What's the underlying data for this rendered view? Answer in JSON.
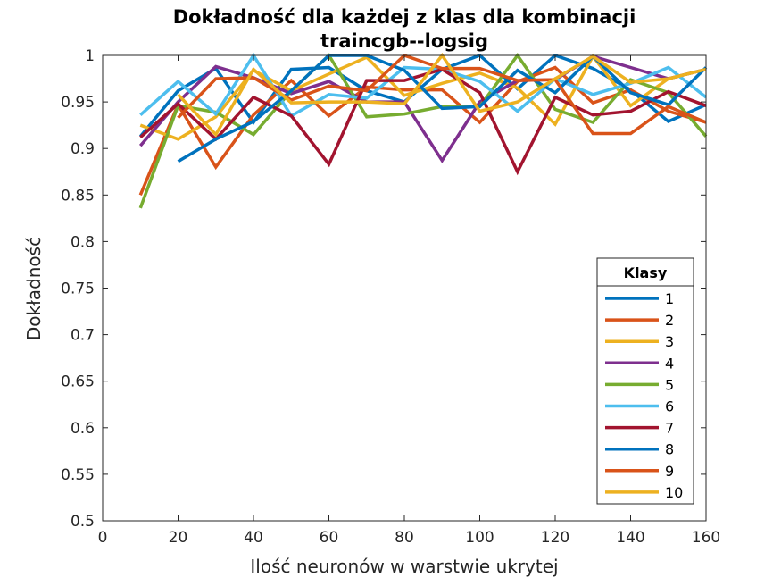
{
  "chart_data": {
    "type": "line",
    "title": [
      "Dokładność dla każdej z klas dla kombinacji",
      "traincgb--logsig"
    ],
    "xlabel": "Ilość neuronów w warstwie ukrytej",
    "ylabel": "Dokładność",
    "xlim": [
      0,
      160
    ],
    "ylim": [
      0.5,
      1
    ],
    "xticks": [
      0,
      20,
      40,
      60,
      80,
      100,
      120,
      140,
      160
    ],
    "yticks": [
      0.5,
      0.55,
      0.6,
      0.65,
      0.7,
      0.75,
      0.8,
      0.85,
      0.9,
      0.95,
      1
    ],
    "xtick_labels": [
      "0",
      "20",
      "40",
      "60",
      "80",
      "100",
      "120",
      "140",
      "160"
    ],
    "ytick_labels": [
      "0.5",
      "0.55",
      "0.6",
      "0.65",
      "0.7",
      "0.75",
      "0.8",
      "0.85",
      "0.9",
      "0.95",
      "1"
    ],
    "grid": false,
    "legend": {
      "title": "Klasy",
      "placement": "bottom-right"
    },
    "x": [
      10,
      20,
      30,
      40,
      50,
      60,
      70,
      80,
      90,
      100,
      110,
      120,
      130,
      140,
      150,
      160
    ],
    "series": [
      {
        "name": "1",
        "color": "#0072BD",
        "values": [
          0.913,
          0.962,
          0.986,
          0.928,
          0.985,
          0.987,
          0.962,
          0.95,
          0.985,
          1.0,
          0.964,
          1.0,
          0.986,
          0.963,
          0.929,
          0.947
        ]
      },
      {
        "name": "2",
        "color": "#D95319",
        "values": [
          0.85,
          0.947,
          0.88,
          0.936,
          0.973,
          0.935,
          0.966,
          0.963,
          0.963,
          0.928,
          0.972,
          0.987,
          0.949,
          0.963,
          0.94,
          0.928
        ]
      },
      {
        "name": "3",
        "color": "#EDB120",
        "values": [
          0.925,
          0.91,
          0.934,
          0.984,
          0.962,
          0.98,
          0.998,
          0.957,
          0.97,
          0.981,
          0.965,
          0.926,
          0.999,
          0.946,
          0.975,
          0.985
        ]
      },
      {
        "name": "4",
        "color": "#7E2F8E",
        "values": [
          0.903,
          0.95,
          0.988,
          0.976,
          0.959,
          0.972,
          0.95,
          0.95,
          0.887,
          0.95,
          0.973,
          0.974,
          0.999,
          0.987,
          0.975,
          0.985
        ]
      },
      {
        "name": "5",
        "color": "#77AC30",
        "values": [
          0.836,
          0.946,
          0.939,
          0.915,
          0.962,
          1.0,
          0.934,
          0.937,
          0.945,
          0.945,
          1.0,
          0.942,
          0.928,
          0.974,
          0.96,
          0.913
        ]
      },
      {
        "name": "6",
        "color": "#4DBEEE",
        "values": [
          0.936,
          0.972,
          0.937,
          1.0,
          0.935,
          0.958,
          0.954,
          0.987,
          0.985,
          0.972,
          0.94,
          0.975,
          0.958,
          0.97,
          0.987,
          0.955
        ]
      },
      {
        "name": "7",
        "color": "#A2142F",
        "values": [
          0.912,
          0.948,
          0.91,
          0.955,
          0.935,
          0.883,
          0.973,
          0.973,
          0.985,
          0.96,
          0.875,
          0.955,
          0.936,
          0.94,
          0.961,
          0.946
        ]
      },
      {
        "name": "8",
        "color": "#0072BD",
        "values": [
          null,
          0.886,
          0.91,
          0.929,
          0.962,
          1.0,
          1.0,
          0.984,
          0.943,
          0.945,
          0.984,
          0.96,
          0.999,
          0.96,
          0.947,
          0.987
        ]
      },
      {
        "name": "9",
        "color": "#D95319",
        "values": [
          null,
          0.933,
          0.975,
          0.976,
          0.952,
          0.967,
          0.962,
          1.0,
          0.986,
          0.986,
          0.973,
          0.974,
          0.916,
          0.916,
          0.945,
          0.928
        ]
      },
      {
        "name": "10",
        "color": "#EDB120",
        "values": [
          null,
          0.958,
          0.915,
          0.985,
          0.949,
          0.95,
          0.95,
          0.948,
          1.0,
          0.94,
          0.95,
          0.975,
          0.999,
          0.971,
          0.975,
          0.985
        ]
      }
    ]
  }
}
